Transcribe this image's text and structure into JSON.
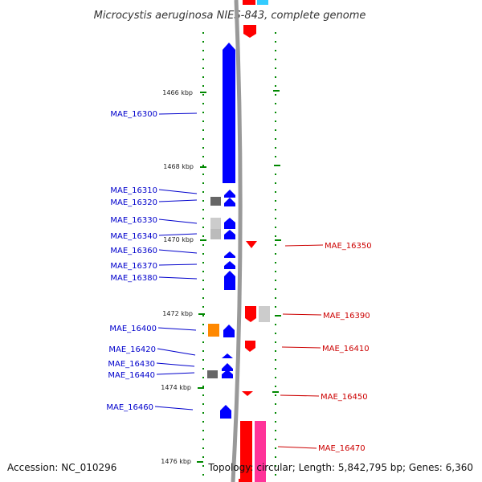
{
  "title": "Microcystis aeruginosa NIES-843, complete genome",
  "footer": {
    "accession": "Accession: NC_010296",
    "topology": "Topology: circular; Length: 5,842,795 bp; Genes: 6,360"
  },
  "colors": {
    "forward_gene": "#0000ff",
    "reverse_gene": "#ff0000",
    "reverse_gene_pink": "#ff3399",
    "top_cyan": "#33ccff",
    "rna_gray": "#777777",
    "rna_light": "#cccccc",
    "orange": "#ff8800",
    "backbone": "#999999",
    "tick_green": "#008800"
  },
  "ticks": [
    "1466 kbp",
    "1468 kbp",
    "1470 kbp",
    "1472 kbp",
    "1474 kbp",
    "1476 kbp"
  ],
  "left_labels": [
    "MAE_16300",
    "MAE_16310",
    "MAE_16320",
    "MAE_16330",
    "MAE_16340",
    "MAE_16360",
    "MAE_16370",
    "MAE_16380",
    "MAE_16400",
    "MAE_16420",
    "MAE_16430",
    "MAE_16440",
    "MAE_16460"
  ],
  "right_labels": [
    "MAE_16350",
    "MAE_16390",
    "MAE_16410",
    "MAE_16450",
    "MAE_16470"
  ]
}
